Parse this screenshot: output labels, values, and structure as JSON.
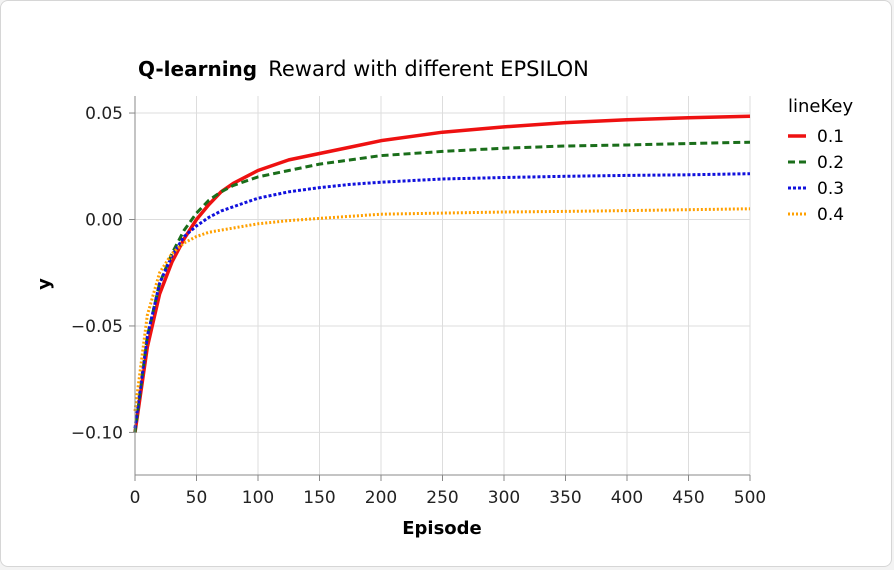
{
  "chart_data": {
    "type": "line",
    "title_bold": "Q-learning",
    "title_rest": "Reward with different EPSILON",
    "xlabel": "Episode",
    "ylabel": "y",
    "xlim": [
      0,
      500
    ],
    "ylim": [
      -0.12,
      0.058
    ],
    "x_ticks": [
      0,
      50,
      100,
      150,
      200,
      250,
      300,
      350,
      400,
      450,
      500
    ],
    "y_ticks": [
      {
        "value": 0.05,
        "label": "0.05"
      },
      {
        "value": 0.0,
        "label": "0.00"
      },
      {
        "value": -0.05,
        "label": "−0.05"
      },
      {
        "value": -0.1,
        "label": "−0.10"
      }
    ],
    "grid": true,
    "legend": {
      "title": "lineKey",
      "placement": "top-right"
    },
    "x": [
      0,
      10,
      20,
      30,
      40,
      50,
      60,
      70,
      80,
      100,
      125,
      150,
      175,
      200,
      250,
      300,
      350,
      400,
      450,
      500
    ],
    "series": [
      {
        "name": "0.1",
        "color": "#ee1111",
        "dash": "solid",
        "values": [
          -0.1,
          -0.06,
          -0.035,
          -0.02,
          -0.009,
          0.0,
          0.007,
          0.013,
          0.017,
          0.023,
          0.028,
          0.031,
          0.034,
          0.037,
          0.041,
          0.0435,
          0.0455,
          0.0468,
          0.0478,
          0.0485
        ]
      },
      {
        "name": "0.2",
        "color": "#1a6e1a",
        "dash": "dashed",
        "values": [
          -0.1,
          -0.055,
          -0.03,
          -0.016,
          -0.005,
          0.003,
          0.009,
          0.013,
          0.016,
          0.02,
          0.023,
          0.026,
          0.028,
          0.03,
          0.032,
          0.0335,
          0.0345,
          0.035,
          0.0357,
          0.0363
        ]
      },
      {
        "name": "0.3",
        "color": "#1111dd",
        "dash": "dotted",
        "values": [
          -0.098,
          -0.055,
          -0.03,
          -0.017,
          -0.008,
          -0.003,
          0.001,
          0.004,
          0.006,
          0.01,
          0.013,
          0.015,
          0.0165,
          0.0175,
          0.019,
          0.0197,
          0.0203,
          0.0207,
          0.021,
          0.0215
        ]
      },
      {
        "name": "0.4",
        "color": "#ffa000",
        "dash": "dotted",
        "values": [
          -0.09,
          -0.045,
          -0.025,
          -0.016,
          -0.011,
          -0.008,
          -0.006,
          -0.005,
          -0.004,
          -0.002,
          -0.0005,
          0.0005,
          0.0015,
          0.0025,
          0.003,
          0.0035,
          0.0038,
          0.0042,
          0.0046,
          0.005
        ]
      }
    ]
  }
}
